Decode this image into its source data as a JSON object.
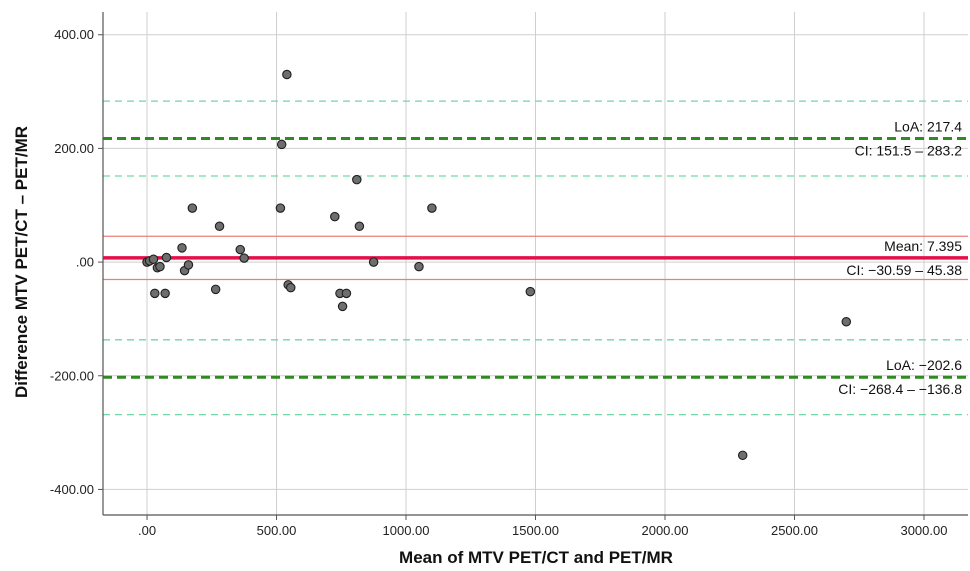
{
  "chart_data": {
    "type": "scatter",
    "title": "",
    "xlabel": "Mean of MTV PET/CT and PET/MR",
    "ylabel": "Difference MTV PET/CT – PET/MR",
    "xlim": [
      -170,
      3170
    ],
    "ylim": [
      -445,
      440
    ],
    "x_ticks": [
      0,
      500,
      1000,
      1500,
      2000,
      2500,
      3000
    ],
    "x_tick_labels": [
      ".00",
      "500.00",
      "1000.00",
      "1500.00",
      "2000.00",
      "2500.00",
      "3000.00"
    ],
    "y_ticks": [
      400,
      200,
      0,
      -200,
      -400
    ],
    "y_tick_labels": [
      "400.00",
      "200.00",
      ".00",
      "-200.00",
      "-400.00"
    ],
    "grid": true,
    "points": [
      {
        "x": 0,
        "y": 0
      },
      {
        "x": 10,
        "y": 2
      },
      {
        "x": 25,
        "y": 5
      },
      {
        "x": 30,
        "y": -55
      },
      {
        "x": 40,
        "y": -10
      },
      {
        "x": 50,
        "y": -8
      },
      {
        "x": 70,
        "y": -55
      },
      {
        "x": 75,
        "y": 8
      },
      {
        "x": 135,
        "y": 25
      },
      {
        "x": 145,
        "y": -15
      },
      {
        "x": 160,
        "y": -5
      },
      {
        "x": 175,
        "y": 95
      },
      {
        "x": 265,
        "y": -48
      },
      {
        "x": 280,
        "y": 63
      },
      {
        "x": 360,
        "y": 22
      },
      {
        "x": 375,
        "y": 7
      },
      {
        "x": 515,
        "y": 95
      },
      {
        "x": 520,
        "y": 207
      },
      {
        "x": 540,
        "y": 330
      },
      {
        "x": 545,
        "y": -40
      },
      {
        "x": 555,
        "y": -45
      },
      {
        "x": 725,
        "y": 80
      },
      {
        "x": 745,
        "y": -55
      },
      {
        "x": 755,
        "y": -78
      },
      {
        "x": 770,
        "y": -55
      },
      {
        "x": 810,
        "y": 145
      },
      {
        "x": 820,
        "y": 63
      },
      {
        "x": 875,
        "y": 0
      },
      {
        "x": 1050,
        "y": -8
      },
      {
        "x": 1100,
        "y": 95
      },
      {
        "x": 1480,
        "y": -52
      },
      {
        "x": 2300,
        "y": -340
      },
      {
        "x": 2700,
        "y": -105
      }
    ],
    "reference_lines": [
      {
        "name": "mean",
        "value": 7.395,
        "style": "solid-thick",
        "color": "#e3104a"
      },
      {
        "name": "mean_ci_upper",
        "value": 45.38,
        "style": "solid-thin",
        "color": "#e88079"
      },
      {
        "name": "mean_ci_lower",
        "value": -30.59,
        "style": "solid-thin",
        "color": "#e88079"
      },
      {
        "name": "upper_loa",
        "value": 217.4,
        "style": "dashed-thick",
        "color": "#2f8a24"
      },
      {
        "name": "upper_loa_ci_upper",
        "value": 283.2,
        "style": "dashed-thin",
        "color": "#6dd9a5"
      },
      {
        "name": "upper_loa_ci_lower",
        "value": 151.5,
        "style": "dashed-thin",
        "color": "#6dd9a5"
      },
      {
        "name": "lower_loa",
        "value": -202.6,
        "style": "dashed-thick",
        "color": "#2f8a24"
      },
      {
        "name": "lower_loa_ci_upper",
        "value": -136.8,
        "style": "dashed-thin",
        "color": "#6dd9a5"
      },
      {
        "name": "lower_loa_ci_lower",
        "value": -268.4,
        "style": "dashed-thin",
        "color": "#6dd9a5"
      }
    ],
    "annotations": [
      {
        "text": "LoA: 217.4",
        "anchor_value": 217.4,
        "side": "above"
      },
      {
        "text": "CI: 151.5 – 283.2",
        "anchor_value": 217.4,
        "side": "below"
      },
      {
        "text": "Mean: 7.395",
        "anchor_value": 7.395,
        "side": "above"
      },
      {
        "text": "CI: −30.59 – 45.38",
        "anchor_value": 7.395,
        "side": "below"
      },
      {
        "text": "LoA: −202.6",
        "anchor_value": -202.6,
        "side": "above"
      },
      {
        "text": "CI: −268.4 – −136.8",
        "anchor_value": -202.6,
        "side": "below"
      }
    ],
    "colors": {
      "point_fill": "#6e6e6e",
      "point_stroke": "#1f1f1f",
      "grid": "#cfcfcf",
      "axis": "#555555"
    }
  }
}
